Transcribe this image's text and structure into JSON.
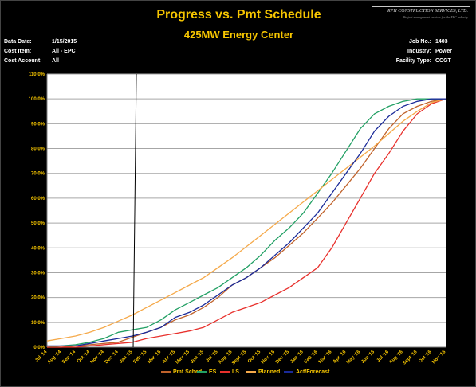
{
  "header": {
    "title": "Progress vs. Pmt Schedule",
    "subtitle": "425MW Energy Center",
    "logo_name": "RPH CONSTRUCTION SERVICES, LTD.",
    "logo_tagline": "Project management services for the EPC industry"
  },
  "info_left": [
    {
      "label": "Data Date:",
      "value": "1/15/2015"
    },
    {
      "label": "Cost Item:",
      "value": "All - EPC"
    },
    {
      "label": "Cost Account:",
      "value": "All"
    }
  ],
  "info_right": [
    {
      "label": "Job No.:",
      "value": "1403"
    },
    {
      "label": "Industry:",
      "value": "Power"
    },
    {
      "label": "Facility Type:",
      "value": "CCGT"
    }
  ],
  "colors": {
    "background": "#000000",
    "title": "#f7c600",
    "grid": "#a6a6a6",
    "tick_label": "#f7c600",
    "pmt_sched": "#c0622b",
    "es": "#22a064",
    "ls": "#e8302c",
    "planned": "#f5a94a",
    "act_forecast": "#1a2a99",
    "data_date_line": "#000000"
  },
  "chart_data": {
    "type": "line",
    "title": "Progress vs. Pmt Schedule",
    "xlabel": "",
    "ylabel": "",
    "categories": [
      "Jul '14",
      "Aug '14",
      "Sep '14",
      "Oct '14",
      "Nov '14",
      "Dec '14",
      "Jan '15",
      "Feb '15",
      "Mar '15",
      "Apr '15",
      "May '15",
      "Jun '15",
      "Jul '15",
      "Aug '15",
      "Sept '15",
      "Oct '15",
      "Nov '15",
      "Dec '15",
      "Jan '16",
      "Feb '16",
      "Mar '16",
      "Apr '16",
      "May '16",
      "Jun '16",
      "Jul '16",
      "Aug '16",
      "Sept '16",
      "Oct '16",
      "Nov '16"
    ],
    "ylim": [
      0,
      110
    ],
    "yticks": [
      0,
      10,
      20,
      30,
      40,
      50,
      60,
      70,
      80,
      90,
      100,
      110
    ],
    "ytick_labels": [
      "0.0%",
      "10.0%",
      "20.0%",
      "30.0%",
      "40.0%",
      "50.0%",
      "60.0%",
      "70.0%",
      "80.0%",
      "90.0%",
      "100.0%",
      "110.0%"
    ],
    "data_date_index": 6,
    "grid": true,
    "legend_position": "bottom",
    "series": [
      {
        "name": "Pmt Sched",
        "color_key": "pmt_sched",
        "values": [
          0,
          0,
          0.5,
          1,
          1.5,
          2,
          4,
          6,
          8,
          11,
          13,
          16,
          20,
          25,
          28,
          32,
          36,
          41,
          46,
          52,
          58,
          65,
          72,
          80,
          88,
          94,
          97,
          99,
          100
        ]
      },
      {
        "name": "ES",
        "color_key": "es",
        "values": [
          0,
          0.5,
          1,
          2,
          3.5,
          6,
          7,
          8,
          11,
          15,
          18,
          21,
          24,
          28,
          32,
          37,
          43,
          48,
          54,
          62,
          70,
          79,
          88,
          94,
          97,
          99,
          100,
          100,
          100
        ]
      },
      {
        "name": "LS",
        "color_key": "ls",
        "values": [
          0,
          0,
          0,
          0.5,
          1,
          1.5,
          2,
          3.5,
          4.5,
          5.5,
          6.5,
          8,
          11,
          14,
          16,
          18,
          21,
          24,
          28,
          32,
          40,
          50,
          60,
          70,
          78,
          87,
          94,
          98,
          100
        ]
      },
      {
        "name": "Planned",
        "color_key": "planned",
        "values": [
          2.5,
          3.5,
          4.5,
          6,
          8,
          10.5,
          13,
          16,
          19,
          22,
          25,
          28,
          32,
          36,
          40.5,
          45,
          49.5,
          54,
          58.5,
          63,
          67.5,
          72,
          76.5,
          81,
          86,
          91,
          95,
          98.5,
          100
        ]
      },
      {
        "name": "Act/Forecast",
        "color_key": "act_forecast",
        "values": [
          0.5,
          0.5,
          0.5,
          1.5,
          2.5,
          3.5,
          4.5,
          6,
          8,
          12,
          14,
          17,
          21,
          25,
          28,
          32,
          37,
          42,
          48,
          54,
          62,
          70,
          78,
          87,
          93,
          97,
          99,
          100,
          100
        ]
      }
    ]
  }
}
